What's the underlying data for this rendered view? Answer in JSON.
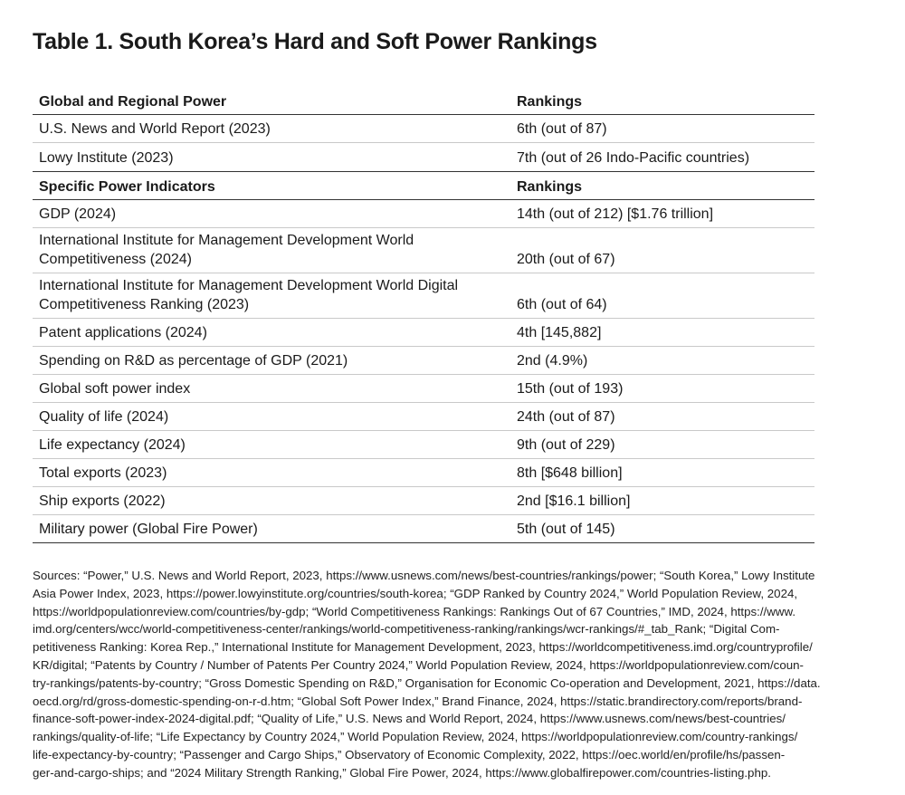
{
  "title": "Table 1. South Korea’s Hard and Soft Power Rankings",
  "section1": {
    "header": [
      "Global and Regional Power",
      "Rankings"
    ],
    "rows": [
      [
        "U.S. News and World Report (2023)",
        "6th (out of 87)"
      ],
      [
        "Lowy Institute (2023)",
        "7th (out of 26 Indo-Pacific countries)"
      ]
    ]
  },
  "section2": {
    "header": [
      "Specific Power Indicators",
      "Rankings"
    ],
    "rows": [
      [
        "GDP (2024)",
        "14th (out of 212) [$1.76 trillion]"
      ],
      [
        "International Institute for Management Development World Competitiveness (2024)",
        "20th (out of 67)"
      ],
      [
        "International Institute for Management Development World Digital Competitiveness Ranking (2023)",
        "6th (out of 64)"
      ],
      [
        "Patent applications (2024)",
        "4th [145,882]"
      ],
      [
        "Spending on R&D as percentage of GDP (2021)",
        "2nd (4.9%)"
      ],
      [
        "Global soft power index",
        "15th (out of 193)"
      ],
      [
        "Quality of life (2024)",
        "24th (out of 87)"
      ],
      [
        "Life expectancy (2024)",
        "9th (out of 229)"
      ],
      [
        "Total exports (2023)",
        "8th [$648 billion]"
      ],
      [
        "Ship exports (2022)",
        "2nd [$16.1 billion]"
      ],
      [
        "Military power (Global Fire Power)",
        "5th (out of 145)"
      ]
    ]
  },
  "sources_lines": [
    "Sources: “Power,” U.S. News and World Report, 2023, https://www.usnews.com/news/best-countries/rankings/power; “South Korea,” Lowy Institute",
    "Asia Power Index, 2023, https://power.lowyinstitute.org/countries/south-korea; “GDP Ranked by Country 2024,” World Population Review, 2024,",
    "https://worldpopulationreview.com/countries/by-gdp; “World Competitiveness Rankings: Rankings Out of 67 Countries,” IMD, 2024,  https://www.",
    "imd.org/centers/wcc/world-competitiveness-center/rankings/world-competitiveness-ranking/rankings/wcr-rankings/#_tab_Rank; “Digital Com-",
    "petitiveness Ranking: Korea Rep.,” International Institute for Management Development, 2023, https://worldcompetitiveness.imd.org/countryprofile/",
    "KR/digital; “Patents by Country / Number of Patents Per Country 2024,” World Population Review, 2024, https://worldpopulationreview.com/coun-",
    "try-rankings/patents-by-country; “Gross Domestic Spending on R&D,” Organisation for Economic Co-operation and Development, 2021, https://data.",
    "oecd.org/rd/gross-domestic-spending-on-r-d.htm; “Global Soft Power Index,” Brand Finance, 2024, https://static.brandirectory.com/reports/brand-",
    "finance-soft-power-index-2024-digital.pdf; “Quality of Life,” U.S. News and World Report, 2024, https://www.usnews.com/news/best-countries/",
    "rankings/quality-of-life; “Life Expectancy by Country 2024,” World Population Review, 2024, https://worldpopulationreview.com/country-rankings/",
    "life-expectancy-by-country; “Passenger and Cargo Ships,” Observatory of Economic Complexity, 2022, https://oec.world/en/profile/hs/passen-",
    "ger-and-cargo-ships; and “2024 Military Strength Ranking,” Global Fire Power, 2024, https://www.globalfirepower.com/countries-listing.php."
  ]
}
